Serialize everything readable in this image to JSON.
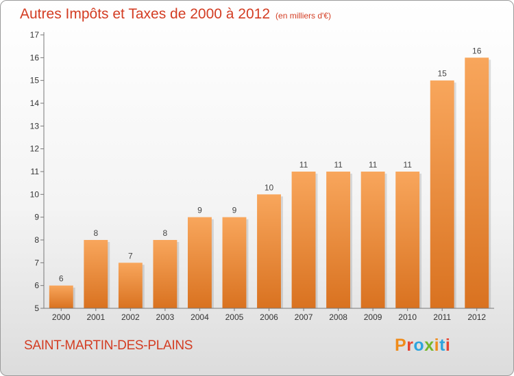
{
  "header": {
    "title": "Autres Impôts et Taxes de 2000 à 2012",
    "unit": "(en milliers d'€)"
  },
  "footer": {
    "commune": "SAINT-MARTIN-DES-PLAINS",
    "logo": "Proxiti",
    "logo_colors": [
      "#ef8b1a",
      "#e64432",
      "#2ea4de",
      "#74b62a",
      "#ef8b1a",
      "#2ea4de",
      "#e64432"
    ]
  },
  "colors": {
    "bar_top": "#f8a65c",
    "bar_bottom": "#d97220",
    "title": "#d33c22"
  },
  "chart_data": {
    "type": "bar",
    "categories": [
      "2000",
      "2001",
      "2002",
      "2003",
      "2004",
      "2005",
      "2006",
      "2007",
      "2008",
      "2009",
      "2010",
      "2011",
      "2012"
    ],
    "values": [
      6,
      8,
      7,
      8,
      9,
      9,
      10,
      11,
      11,
      11,
      11,
      15,
      16
    ],
    "title": "Autres Impôts et Taxes de 2000 à 2012",
    "xlabel": "",
    "ylabel": "",
    "ylim": [
      5,
      17
    ],
    "yticks": [
      5,
      6,
      7,
      8,
      9,
      10,
      11,
      12,
      13,
      14,
      15,
      16,
      17
    ],
    "grid": false,
    "data_labels": true
  }
}
